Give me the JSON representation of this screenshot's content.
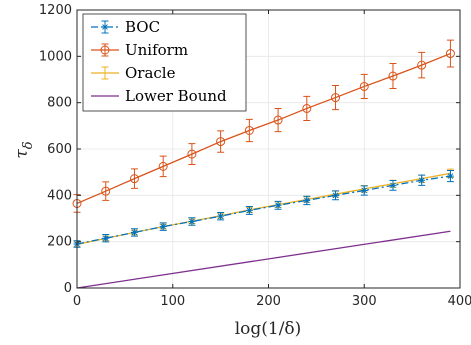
{
  "chart_data": {
    "type": "line",
    "xlabel": "log(1/δ)",
    "ylabel": "τ_δ",
    "ylabel_main": "τ",
    "ylabel_sub": "δ",
    "xlim": [
      0,
      400
    ],
    "ylim": [
      0,
      1200
    ],
    "xticks": [
      0,
      100,
      200,
      300,
      400
    ],
    "yticks": [
      0,
      200,
      400,
      600,
      800,
      1000,
      1200
    ],
    "grid": true,
    "legend_position": "top-left",
    "series": [
      {
        "name": "BOC",
        "color": "#0072BD",
        "style": "dash-dot",
        "marker": "star",
        "x": [
          0,
          30,
          60,
          90,
          120,
          150,
          180,
          210,
          240,
          270,
          300,
          330,
          360,
          390
        ],
        "y": [
          190,
          215,
          240,
          265,
          287,
          310,
          335,
          357,
          378,
          400,
          421,
          443,
          465,
          483
        ],
        "err": [
          14,
          16,
          16,
          16,
          16,
          16,
          17,
          17,
          18,
          19,
          20,
          21,
          22,
          24
        ]
      },
      {
        "name": "Uniform",
        "color": "#D95319",
        "style": "solid",
        "marker": "circle",
        "x": [
          0,
          30,
          60,
          90,
          120,
          150,
          180,
          210,
          240,
          270,
          300,
          330,
          360,
          390
        ],
        "y": [
          365,
          418,
          472,
          525,
          578,
          632,
          680,
          725,
          775,
          822,
          870,
          915,
          962,
          1012
        ],
        "err": [
          38,
          40,
          42,
          44,
          45,
          46,
          48,
          50,
          52,
          52,
          52,
          54,
          55,
          58
        ]
      },
      {
        "name": "Oracle",
        "color": "#EDB120",
        "style": "solid",
        "marker": "none",
        "x": [
          0,
          30,
          60,
          90,
          120,
          150,
          180,
          210,
          240,
          270,
          300,
          330,
          360,
          390
        ],
        "y": [
          188,
          214,
          240,
          265,
          288,
          312,
          337,
          360,
          382,
          405,
          428,
          450,
          472,
          495
        ],
        "err": [
          10,
          10,
          10,
          10,
          10,
          11,
          11,
          12,
          12,
          13,
          14,
          15,
          16,
          18
        ]
      },
      {
        "name": "Lower Bound",
        "color": "#7E2F8E",
        "style": "solid",
        "marker": "none",
        "x": [
          0,
          390
        ],
        "y": [
          0,
          245
        ]
      }
    ]
  }
}
